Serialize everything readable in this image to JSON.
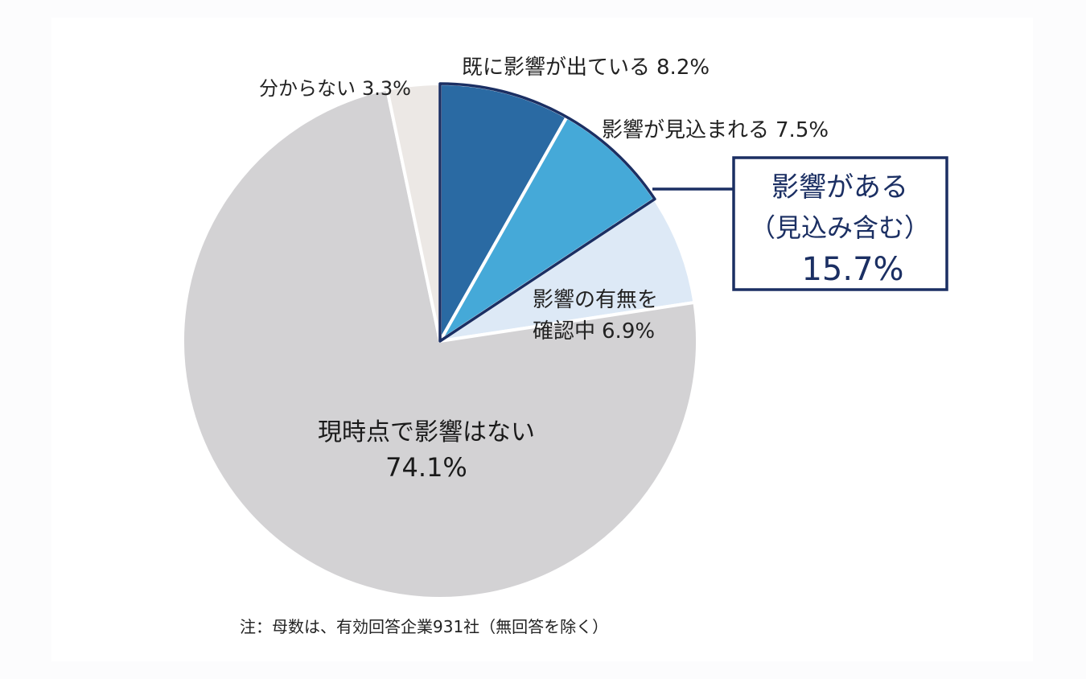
{
  "chart_data": {
    "type": "pie",
    "slices": [
      {
        "key": "already",
        "label": "既に影響が出ている",
        "value": 8.2,
        "value_label": "8.2%",
        "color": "#2a6aa3"
      },
      {
        "key": "expected",
        "label": "影響が見込まれる",
        "value": 7.5,
        "value_label": "7.5%",
        "color": "#45a9d8"
      },
      {
        "key": "checking",
        "label_lines": [
          "影響の有無を",
          "確認中"
        ],
        "value": 6.9,
        "value_label": "6.9%",
        "color": "#dde9f6"
      },
      {
        "key": "none",
        "label": "現時点で影響はない",
        "value": 74.1,
        "value_label": "74.1%",
        "color": "#d3d2d4"
      },
      {
        "key": "unknown",
        "label": "分からない",
        "value": 3.3,
        "value_label": "3.3%",
        "color": "#ece8e5"
      }
    ],
    "callout": {
      "lines": [
        "影響がある",
        "（見込み含む）"
      ],
      "value_label": "15.7%",
      "value": 15.7,
      "border_color": "#1b2f63"
    },
    "note": "注：母数は、有効回答企業931社（無回答を除く）"
  }
}
